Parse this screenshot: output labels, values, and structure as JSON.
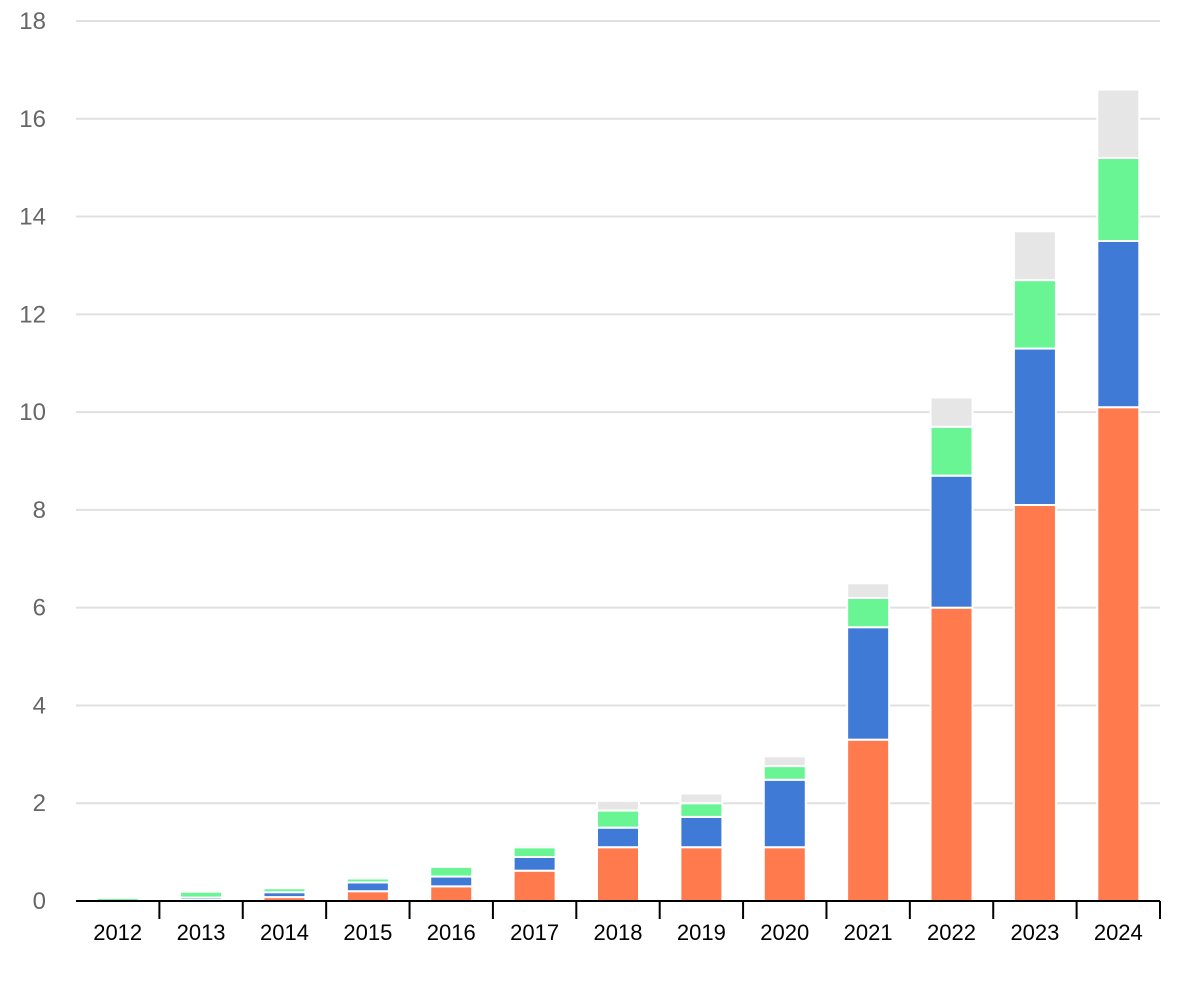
{
  "chart_data": {
    "type": "bar",
    "stacked": true,
    "title": "",
    "xlabel": "",
    "ylabel": "",
    "ylim": [
      0,
      18
    ],
    "yticks": [
      "0",
      "2",
      "4",
      "6",
      "8",
      "10",
      "12",
      "14",
      "16",
      "18"
    ],
    "grid": true,
    "legend": "none",
    "categories": [
      "2012",
      "2013",
      "2014",
      "2015",
      "2016",
      "2017",
      "2018",
      "2019",
      "2020",
      "2021",
      "2022",
      "2023",
      "2024"
    ],
    "series": [
      {
        "color": "#ff7a4d",
        "values": [
          0.0,
          0.02,
          0.08,
          0.2,
          0.3,
          0.62,
          1.1,
          1.1,
          1.1,
          3.3,
          6.0,
          8.1,
          10.1
        ]
      },
      {
        "color": "#3e7ad6",
        "values": [
          0.0,
          0.05,
          0.1,
          0.18,
          0.2,
          0.28,
          0.4,
          0.62,
          1.38,
          2.3,
          2.7,
          3.2,
          3.4
        ]
      },
      {
        "color": "#6af594",
        "values": [
          0.06,
          0.12,
          0.08,
          0.08,
          0.2,
          0.2,
          0.35,
          0.28,
          0.28,
          0.6,
          1.0,
          1.4,
          1.7
        ]
      },
      {
        "color": "#e6e6e6",
        "values": [
          0.0,
          0.0,
          0.0,
          0.02,
          0.02,
          0.05,
          0.2,
          0.2,
          0.2,
          0.3,
          0.6,
          1.0,
          1.4
        ]
      }
    ]
  }
}
